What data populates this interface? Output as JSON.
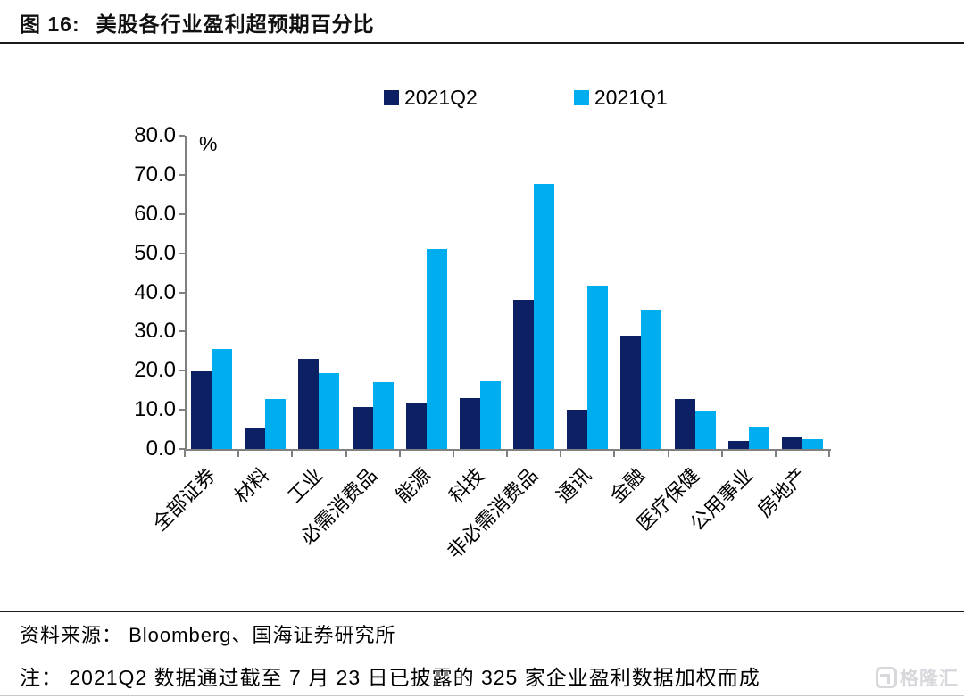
{
  "header": {
    "figure_label": "图 16:",
    "title": "美股各行业盈利超预期百分比"
  },
  "chart_data": {
    "type": "bar",
    "title": "美股各行业盈利超预期百分比",
    "xlabel": "",
    "ylabel": "%",
    "ylim": [
      0,
      80
    ],
    "ytick_step": 10,
    "ytick_labels": [
      "0.0",
      "10.0",
      "20.0",
      "30.0",
      "40.0",
      "50.0",
      "60.0",
      "70.0",
      "80.0"
    ],
    "grid": false,
    "legend_position": "top",
    "categories": [
      "全部证券",
      "材料",
      "工业",
      "必需消费品",
      "能源",
      "科技",
      "非必需消费品",
      "通讯",
      "金融",
      "医疗保健",
      "公用事业",
      "房地产"
    ],
    "series": [
      {
        "name": "2021Q2",
        "color": "#0C2063",
        "values": [
          19.8,
          5.3,
          23.0,
          10.6,
          11.6,
          13.0,
          38.0,
          10.0,
          29.0,
          12.8,
          2.1,
          2.9
        ]
      },
      {
        "name": "2021Q1",
        "color": "#00AEEF",
        "values": [
          25.6,
          12.8,
          19.4,
          17.2,
          51.0,
          17.3,
          67.6,
          41.7,
          35.6,
          9.7,
          5.8,
          2.5
        ]
      }
    ]
  },
  "footer": {
    "source": "资料来源： Bloomberg、国海证券研究所",
    "note": "注： 2021Q2 数据通过截至 7 月 23 日已披露的 325 家企业盈利数据加权而成"
  },
  "watermark": {
    "text": "格隆汇"
  }
}
